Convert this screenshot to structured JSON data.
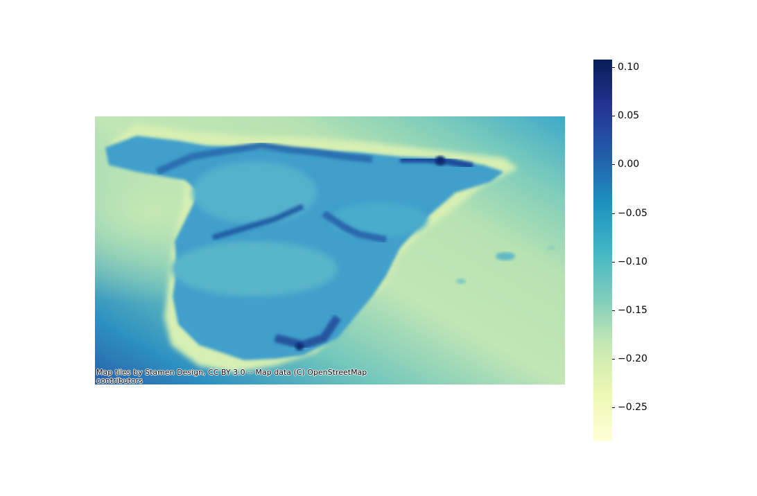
{
  "map": {
    "attribution": "Map tiles by Stamen Design, CC BY 3.0 -- Map data (C) OpenStreetMap contributors"
  },
  "colorbar": {
    "colormap": "YlGnBu",
    "min": -0.285,
    "max": 0.108,
    "ticks": [
      "0.10",
      "0.05",
      "0.00",
      "−0.05",
      "−0.10",
      "−0.15",
      "−0.20",
      "−0.25"
    ],
    "tick_values": [
      0.1,
      0.05,
      0.0,
      -0.05,
      -0.1,
      -0.15,
      -0.2,
      -0.25
    ]
  },
  "colors": {
    "ylgnbu": [
      "#ffffd9",
      "#edf8b1",
      "#c7e9b4",
      "#7fcdbb",
      "#41b6c4",
      "#1d91c0",
      "#225ea8",
      "#253494",
      "#081d58"
    ]
  }
}
